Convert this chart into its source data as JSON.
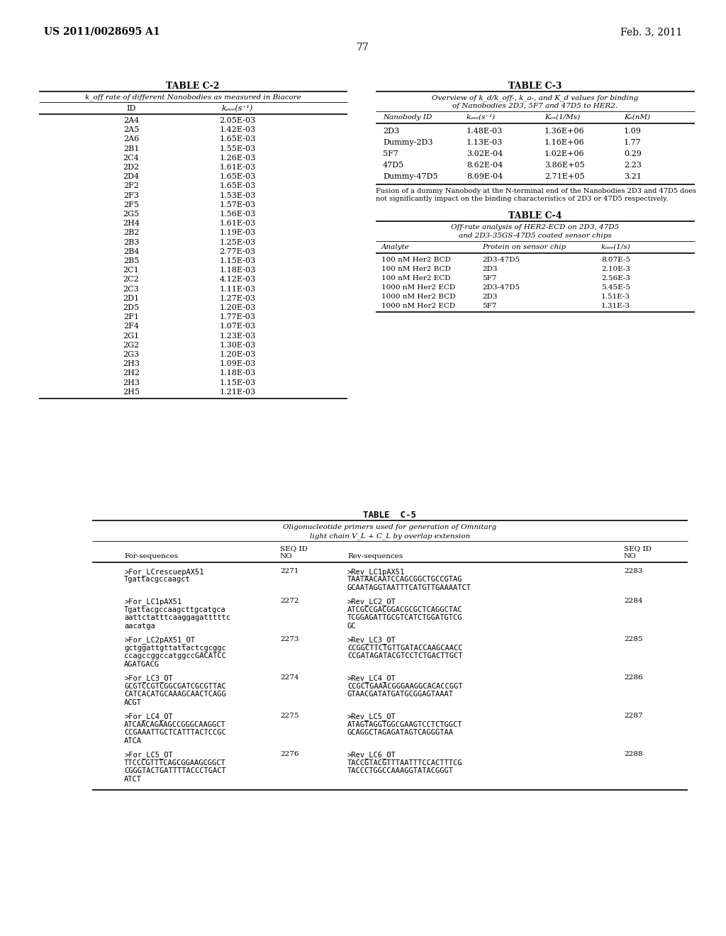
{
  "header_left": "US 2011/0028695 A1",
  "header_right": "Feb. 3, 2011",
  "page_num": "77",
  "bg_color": "#ffffff",
  "table_c2_title": "TABLE C-2",
  "table_c2_subtitle": "k_off rate of different Nanobodies as measured in Biacore",
  "table_c2_col1": "ID",
  "table_c2_col2": "k_off(s^-1)",
  "table_c2_data": [
    [
      "2A4",
      "2.05E-03"
    ],
    [
      "2A5",
      "1.42E-03"
    ],
    [
      "2A6",
      "1.65E-03"
    ],
    [
      "2B1",
      "1.55E-03"
    ],
    [
      "2C4",
      "1.26E-03"
    ],
    [
      "2D2",
      "1.61E-03"
    ],
    [
      "2D4",
      "1.65E-03"
    ],
    [
      "2F2",
      "1.65E-03"
    ],
    [
      "2F3",
      "1.53E-03"
    ],
    [
      "2F5",
      "1.57E-03"
    ],
    [
      "2G5",
      "1.56E-03"
    ],
    [
      "2H4",
      "1.61E-03"
    ],
    [
      "2B2",
      "1.19E-03"
    ],
    [
      "2B3",
      "1.25E-03"
    ],
    [
      "2B4",
      "2.77E-03"
    ],
    [
      "2B5",
      "1.15E-03"
    ],
    [
      "2C1",
      "1.18E-03"
    ],
    [
      "2C2",
      "4.12E-03"
    ],
    [
      "2C3",
      "1.11E-03"
    ],
    [
      "2D1",
      "1.27E-03"
    ],
    [
      "2D5",
      "1.20E-03"
    ],
    [
      "2F1",
      "1.77E-03"
    ],
    [
      "2F4",
      "1.07E-03"
    ],
    [
      "2G1",
      "1.23E-03"
    ],
    [
      "2G2",
      "1.30E-03"
    ],
    [
      "2G3",
      "1.20E-03"
    ],
    [
      "2H3",
      "1.09E-03"
    ],
    [
      "2H2",
      "1.18E-03"
    ],
    [
      "2H3",
      "1.15E-03"
    ],
    [
      "2H5",
      "1.21E-03"
    ]
  ],
  "table_c3_title": "TABLE C-3",
  "table_c3_sub1": "Overview of k_d/k_off-, k_a-, and K_d values for binding",
  "table_c3_sub2": "of Nanobodies 2D3, 5F7 and 47D5 to HER2.",
  "table_c3_h1": "Nanobody ID",
  "table_c3_h2": "k_off(s^-1)",
  "table_c3_h3": "K_on(1/Ms)",
  "table_c3_h4": "K_D(nM)",
  "table_c3_data": [
    [
      "2D3",
      "1.48E-03",
      "1.36E+06",
      "1.09"
    ],
    [
      "Dummy-2D3",
      "1.13E-03",
      "1.16E+06",
      "1.77"
    ],
    [
      "5F7",
      "3.02E-04",
      "1.02E+06",
      "0.29"
    ],
    [
      "47D5",
      "8.62E-04",
      "3.86E+05",
      "2.23"
    ],
    [
      "Dummy-47D5",
      "8.69E-04",
      "2.71E+05",
      "3.21"
    ]
  ],
  "table_c3_fn1": "Fusion of a dummy Nanobody at the N-terminal end of the Nanobodies 2D3 and 47D5 does",
  "table_c3_fn2": "not significantly impact on the binding characteristics of 2D3 or 47D5 respectively.",
  "table_c4_title": "TABLE C-4",
  "table_c4_sub1": "Off-rate analysis of HER2-ECD on 2D3, 47D5",
  "table_c4_sub2": "and 2D3-35GS-47D5 coated sensor chips",
  "table_c4_h1": "Analyte",
  "table_c4_h2": "Protein on sensor chip",
  "table_c4_h3": "k_off(1/s)",
  "table_c4_data": [
    [
      "100 nM Her2 BCD",
      "2D3-47D5",
      "8.07E-5"
    ],
    [
      "100 nM Her2 BCD",
      "2D3",
      "2.10E-3"
    ],
    [
      "100 nM Her2 ECD",
      "5F7",
      "2.56E-3"
    ],
    [
      "1000 nM Her2 ECD",
      "2D3-47D5",
      "5.45E-5"
    ],
    [
      "1000 nM Her2 BCD",
      "2D3",
      "1.51E-3"
    ],
    [
      "1000 nM Her2 ECD",
      "5F7",
      "1.31E-3"
    ]
  ],
  "table_c5_title": "TABLE  C-5",
  "table_c5_sub1": "Oligonucleotide primers used for generation of Omnitarg",
  "table_c5_sub2": "light chain V_L + C_L by overlap extension",
  "table_c5_data": [
    {
      "for_lines": [
        ">For_LCrescuepAX51",
        "Tgattacgccaagct"
      ],
      "seq_for": "2271",
      "rev_lines": [
        ">Rev_LC1pAX51",
        "TAATAACAATCCAGCGGCTGCCGTAG",
        "GCAATAGGTAATTTCATGTTGAAAATCT"
      ],
      "seq_rev": "2283"
    },
    {
      "for_lines": [
        ">For_LC1pAX51",
        "Tgattacgccaagcttgcatgca",
        "aattctatttcaaggagatttttc",
        "aacatga"
      ],
      "seq_for": "2272",
      "rev_lines": [
        ">Rev_LC2_OT",
        "ATCGCCGACGGACGCGCTCAGGCTAC",
        "TCGGAGATTGCGTCATCTGGATGTCG",
        "GC"
      ],
      "seq_rev": "2284"
    },
    {
      "for_lines": [
        ">For_LC2pAX51_OT",
        "gctggattgttattactcgcggc",
        "ccagccggccatggccGACATCC",
        "AGATGACG"
      ],
      "seq_for": "2273",
      "rev_lines": [
        ">Rev_LC3_OT",
        "CCGGCTTCTGTTGATACCAAGCAACC",
        "CCGATAGATACGTCCTCTGACTTGCT"
      ],
      "seq_rev": "2285"
    },
    {
      "for_lines": [
        ">For_LC3_OT",
        "GCGTCCGTCGGCGATCGCGTTAC",
        "CATCACATGCAAAGCAACTCAGG",
        "ACGT"
      ],
      "seq_for": "2274",
      "rev_lines": [
        ">Rev_LC4_OT",
        "CCGCTGAAACGGGAAGGCACACCGGT",
        "GTAACGATATGATGCGGAGTAAAT"
      ],
      "seq_rev": "2286"
    },
    {
      "for_lines": [
        ">For_LC4_OT",
        "ATCAACAGAAGCCGGGCAAGGCT",
        "CCGAAATTGCTCATTTACTCCGC",
        "ATCA"
      ],
      "seq_for": "2275",
      "rev_lines": [
        ">Rev_LC5_OT",
        "ATAGTAGGTGGCGAAGTCCTCTGGCT",
        "GCAGGCTAGAGATAGTCAGGGTAA"
      ],
      "seq_rev": "2287"
    },
    {
      "for_lines": [
        ">For_LC5_OT",
        "TTCCCGTTTCAGCGGAAGCGGCT",
        "CGGGTACTGATTTTACCCTGACT",
        "ATCT"
      ],
      "seq_for": "2276",
      "rev_lines": [
        ">Rev_LC6_OT",
        "TACCGTACGTTTAATTTCCACTTTCG",
        "TACCCTGGCCAAAGGTATACGGGT"
      ],
      "seq_rev": "2288"
    }
  ]
}
